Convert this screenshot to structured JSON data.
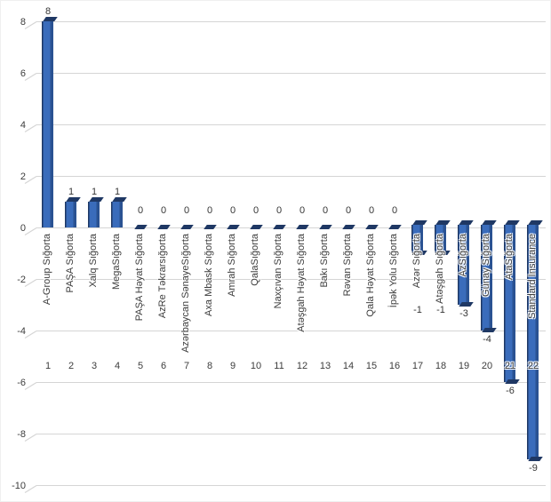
{
  "chart_data": {
    "type": "bar",
    "variant": "3d-column",
    "title": "",
    "xlabel": "",
    "ylabel": "",
    "ylim": [
      -10,
      8
    ],
    "yticks": [
      8,
      6,
      4,
      2,
      0,
      -2,
      -4,
      -6,
      -8,
      -10
    ],
    "grid": true,
    "legend": false,
    "categories": [
      "A-Group Sığorta",
      "PAŞA Sığorta",
      "Xalq Sığorta",
      "MegaSığorta",
      "PAŞA Həyat Sığorta",
      "AzRe Təkrarsığorta",
      "Azərbaycan SənayeSığorta",
      "Axa Mbask Sığorta",
      "Amrah Sığorta",
      "QalaSığorta",
      "Naxçıvan Sığorta",
      "Atəşgah Həyat Sığorta",
      "Bakı Sığorta",
      "Rəvan Sığorta",
      "Qala Həyat Sığorta",
      "İpək Yolu Sığorta",
      "Azər Sığorta",
      "Atəşgah Sığorta",
      "AzSığorta",
      "Günay Sığorta",
      "AtaSığorta",
      "Standard Insurance"
    ],
    "category_numbers": [
      "1",
      "2",
      "3",
      "4",
      "5",
      "6",
      "7",
      "8",
      "9",
      "10",
      "11",
      "12",
      "13",
      "14",
      "15",
      "16",
      "17",
      "18",
      "19",
      "20",
      "21",
      "22"
    ],
    "values": [
      8,
      1,
      1,
      1,
      0,
      0,
      0,
      0,
      0,
      0,
      0,
      0,
      0,
      0,
      0,
      0,
      -1,
      -1,
      -3,
      -4,
      -6,
      -9
    ],
    "data_labels": [
      "8",
      "1",
      "1",
      "1",
      "0",
      "0",
      "0",
      "0",
      "0",
      "0",
      "0",
      "0",
      "0",
      "0",
      "0",
      "0",
      "-1",
      "-1",
      "-3",
      "-4",
      "-6",
      "-9"
    ],
    "colors": {
      "bar_front": "#3A6CBB",
      "bar_side": "#2A5292",
      "bar_edge": "#1F3864",
      "gridline": "#D5D5D5",
      "text": "#3C3C3C",
      "background": "#FFFFFF"
    }
  }
}
